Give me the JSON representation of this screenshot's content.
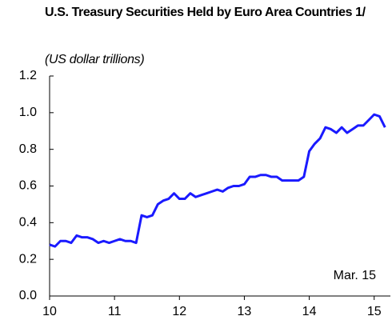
{
  "chart_data": {
    "type": "line",
    "title": "U.S. Treasury Securities Held by Euro Area Countries 1/",
    "subtitle": "(US dollar trillions)",
    "annotation": "Mar. 15",
    "x": [
      10.0,
      10.083,
      10.167,
      10.25,
      10.333,
      10.417,
      10.5,
      10.583,
      10.667,
      10.75,
      10.833,
      10.917,
      11.0,
      11.083,
      11.167,
      11.25,
      11.333,
      11.417,
      11.5,
      11.583,
      11.667,
      11.75,
      11.833,
      11.917,
      12.0,
      12.083,
      12.167,
      12.25,
      12.333,
      12.417,
      12.5,
      12.583,
      12.667,
      12.75,
      12.833,
      12.917,
      13.0,
      13.083,
      13.167,
      13.25,
      13.333,
      13.417,
      13.5,
      13.583,
      13.667,
      13.75,
      13.833,
      13.917,
      14.0,
      14.083,
      14.167,
      14.25,
      14.333,
      14.417,
      14.5,
      14.583,
      14.667,
      14.75,
      14.833,
      14.917,
      15.0,
      15.083,
      15.167
    ],
    "series": [
      {
        "color": "#1a1aff",
        "values": [
          0.28,
          0.27,
          0.3,
          0.3,
          0.29,
          0.33,
          0.32,
          0.32,
          0.31,
          0.29,
          0.3,
          0.29,
          0.3,
          0.31,
          0.3,
          0.3,
          0.29,
          0.44,
          0.43,
          0.44,
          0.5,
          0.52,
          0.53,
          0.56,
          0.53,
          0.53,
          0.56,
          0.54,
          0.55,
          0.56,
          0.57,
          0.58,
          0.57,
          0.59,
          0.6,
          0.6,
          0.61,
          0.65,
          0.65,
          0.66,
          0.66,
          0.65,
          0.65,
          0.63,
          0.63,
          0.63,
          0.63,
          0.65,
          0.79,
          0.83,
          0.86,
          0.92,
          0.91,
          0.89,
          0.92,
          0.89,
          0.91,
          0.93,
          0.93,
          0.96,
          0.99,
          0.98,
          0.92
        ]
      }
    ],
    "xlim": [
      10,
      15.25
    ],
    "xticks": [
      10,
      11,
      12,
      13,
      14,
      15
    ],
    "ylim": [
      0,
      1.2
    ],
    "yticks": [
      {
        "value": 0,
        "label": "0.0"
      },
      0.2,
      0.4,
      0.6,
      0.8,
      {
        "value": 1,
        "label": "1.0"
      },
      1.2
    ],
    "grid": false
  }
}
